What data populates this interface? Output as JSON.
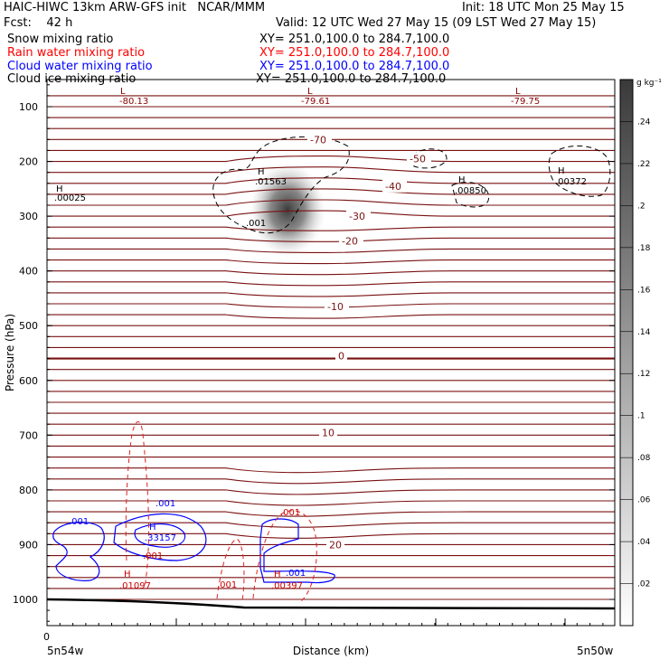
{
  "header": {
    "line1_left": "HAIC-HIWC 13km ARW-GFS init   NCAR/MMM",
    "line1_right": "Init: 18 UTC Mon 25 May 15",
    "line2_left": "Fcst:    42 h",
    "line2_right": "Valid: 12 UTC Wed 27 May 15 (09 LST Wed 27 May 15)",
    "fields": [
      {
        "name": "Snow mixing ratio",
        "xy": "XY= 251.0,100.0 to 284.7,100.0",
        "color": "#000000"
      },
      {
        "name": "Rain water mixing ratio",
        "xy": "XY= 251.0,100.0 to 284.7,100.0",
        "color": "#ff0000"
      },
      {
        "name": "Cloud water mixing ratio",
        "xy": "XY= 251.0,100.0 to 284.7,100.0",
        "color": "#0000ff"
      },
      {
        "name": "Cloud ice mixing ratio",
        "xy": "XY= 251.0,100.0 to 284.7,100.0",
        "color": "#000000"
      }
    ]
  },
  "chart_data": {
    "type": "contour-cross-section",
    "ylabel": "Pressure (hPa)",
    "xlabel": "Distance (km)",
    "x_left_label": "5n54w",
    "x_right_label": "5n50w",
    "x_tick_label": "0",
    "ylim": [
      1050,
      50
    ],
    "y_ticks": [
      100,
      200,
      300,
      400,
      500,
      600,
      700,
      800,
      900,
      1000
    ],
    "colorbar": {
      "unit": "g kg⁻¹",
      "ticks": [
        ".02",
        ".04",
        ".06",
        ".08",
        ".1",
        ".12",
        ".14",
        ".16",
        ".18",
        ".2",
        ".22",
        ".24"
      ]
    },
    "temperature_isotherms": [
      {
        "label": "-70",
        "pressure": 160
      },
      {
        "label": "-50",
        "pressure": 195
      },
      {
        "label": "-40",
        "pressure": 245
      },
      {
        "label": "-30",
        "pressure": 300
      },
      {
        "label": "-20",
        "pressure": 345
      },
      {
        "label": "-10",
        "pressure": 465
      },
      {
        "label": "0",
        "pressure": 555
      },
      {
        "label": "10",
        "pressure": 695
      },
      {
        "label": "20",
        "pressure": 900
      }
    ],
    "extrema_labels": [
      {
        "mark": "L",
        "value": "-80.13",
        "color": "#8b0000"
      },
      {
        "mark": "L",
        "value": "-79.61",
        "color": "#8b0000"
      },
      {
        "mark": "L",
        "value": "-79.75",
        "color": "#8b0000"
      },
      {
        "mark": "H",
        "value": ".00025",
        "color": "#000000"
      },
      {
        "mark": "H",
        "value": ".01563",
        "color": "#000000"
      },
      {
        "mark": "H",
        "value": ".00850",
        "color": "#000000"
      },
      {
        "mark": "H",
        "value": ".00372",
        "color": "#000000"
      },
      {
        "mark": "H",
        "value": ".33157",
        "color": "#0000ff"
      },
      {
        "mark": "H",
        "value": ".01097",
        "color": "#cc0000"
      },
      {
        "mark": "H",
        "value": ".00397",
        "color": "#cc0000"
      }
    ],
    "contour_labels": [
      {
        "text": ".001",
        "color": "#000000"
      },
      {
        "text": ".001",
        "color": "#0000ff"
      },
      {
        "text": ".001",
        "color": "#0000ff"
      },
      {
        "text": ".001",
        "color": "#0000ff"
      },
      {
        "text": ".001",
        "color": "#cc0000"
      },
      {
        "text": ".001",
        "color": "#cc0000"
      },
      {
        "text": ".001",
        "color": "#cc0000"
      }
    ]
  }
}
